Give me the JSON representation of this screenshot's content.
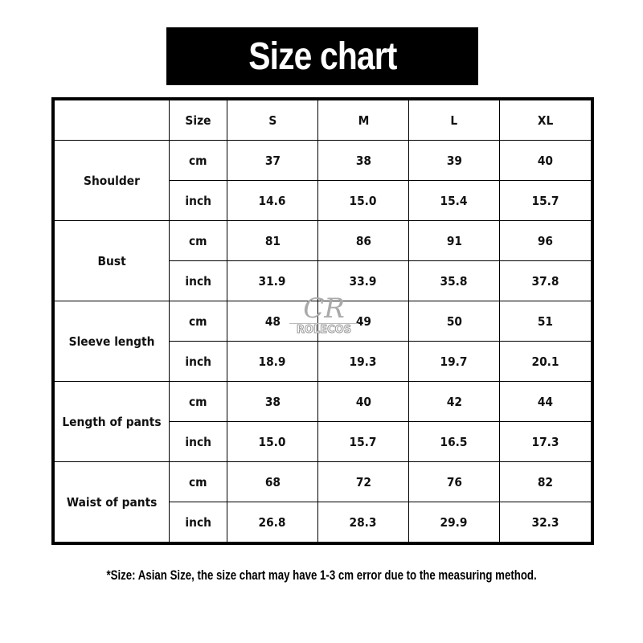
{
  "title": "Size chart",
  "header": {
    "corner": "",
    "size_label": "Size",
    "sizes": [
      "S",
      "M",
      "L",
      "XL"
    ]
  },
  "measurements": [
    {
      "name": "Shoulder",
      "rows": [
        {
          "unit": "cm",
          "values": [
            "37",
            "38",
            "39",
            "40"
          ]
        },
        {
          "unit": "inch",
          "values": [
            "14.6",
            "15.0",
            "15.4",
            "15.7"
          ]
        }
      ]
    },
    {
      "name": "Bust",
      "rows": [
        {
          "unit": "cm",
          "values": [
            "81",
            "86",
            "91",
            "96"
          ]
        },
        {
          "unit": "inch",
          "values": [
            "31.9",
            "33.9",
            "35.8",
            "37.8"
          ]
        }
      ]
    },
    {
      "name": "Sleeve length",
      "rows": [
        {
          "unit": "cm",
          "values": [
            "48",
            "49",
            "50",
            "51"
          ]
        },
        {
          "unit": "inch",
          "values": [
            "18.9",
            "19.3",
            "19.7",
            "20.1"
          ]
        }
      ]
    },
    {
      "name": "Length of pants",
      "rows": [
        {
          "unit": "cm",
          "values": [
            "38",
            "40",
            "42",
            "44"
          ]
        },
        {
          "unit": "inch",
          "values": [
            "15.0",
            "15.7",
            "16.5",
            "17.3"
          ]
        }
      ]
    },
    {
      "name": "Waist of pants",
      "rows": [
        {
          "unit": "cm",
          "values": [
            "68",
            "72",
            "76",
            "82"
          ]
        },
        {
          "unit": "inch",
          "values": [
            "26.8",
            "28.3",
            "29.9",
            "32.3"
          ]
        }
      ]
    }
  ],
  "watermark": {
    "logo_letters": "CR",
    "brand": "ROLECOS"
  },
  "footnote": "*Size: Asian Size, the size chart may have 1-3 cm error due to the measuring method.",
  "colors": {
    "title_bg": "#000000",
    "title_text": "#ffffff",
    "border": "#000000"
  }
}
